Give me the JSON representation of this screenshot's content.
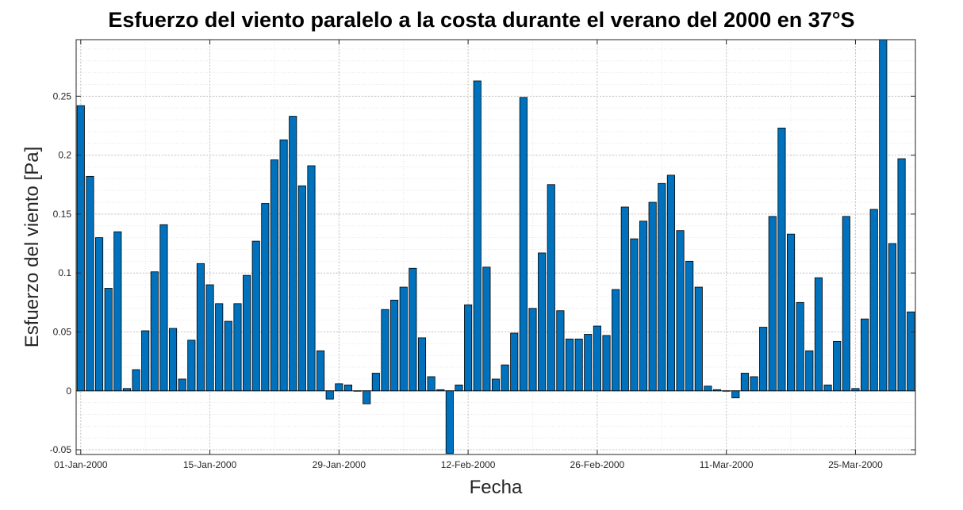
{
  "chart_data": {
    "type": "bar",
    "title": "Esfuerzo del viento paralelo a la costa durante el verano del 2000 en 37°S",
    "xlabel": "Fecha",
    "ylabel": "Esfuerzo del viento [Pa]",
    "ylim": [
      -0.054,
      0.298
    ],
    "yticks": [
      -0.05,
      0,
      0.05,
      0.1,
      0.15,
      0.2,
      0.25
    ],
    "ytick_labels": [
      "-0.05",
      "0",
      "0.05",
      "0.1",
      "0.15",
      "0.2",
      "0.25"
    ],
    "xlim": [
      "2000-01-01",
      "2000-03-31"
    ],
    "xticks": [
      "2000-01-01",
      "2000-01-15",
      "2000-01-29",
      "2000-02-12",
      "2000-02-26",
      "2000-03-11",
      "2000-03-25"
    ],
    "xtick_labels": [
      "01-Jan-2000",
      "15-Jan-2000",
      "29-Jan-2000",
      "12-Feb-2000",
      "26-Feb-2000",
      "11-Mar-2000",
      "25-Mar-2000"
    ],
    "grid": true,
    "minor_grid": true,
    "bar_color": "#0072BD",
    "x": [
      "2000-01-01",
      "2000-01-02",
      "2000-01-03",
      "2000-01-04",
      "2000-01-05",
      "2000-01-06",
      "2000-01-07",
      "2000-01-08",
      "2000-01-09",
      "2000-01-10",
      "2000-01-11",
      "2000-01-12",
      "2000-01-13",
      "2000-01-14",
      "2000-01-15",
      "2000-01-16",
      "2000-01-17",
      "2000-01-18",
      "2000-01-19",
      "2000-01-20",
      "2000-01-21",
      "2000-01-22",
      "2000-01-23",
      "2000-01-24",
      "2000-01-25",
      "2000-01-26",
      "2000-01-27",
      "2000-01-28",
      "2000-01-29",
      "2000-01-30",
      "2000-01-31",
      "2000-02-01",
      "2000-02-02",
      "2000-02-03",
      "2000-02-04",
      "2000-02-05",
      "2000-02-06",
      "2000-02-07",
      "2000-02-08",
      "2000-02-09",
      "2000-02-10",
      "2000-02-11",
      "2000-02-12",
      "2000-02-13",
      "2000-02-14",
      "2000-02-15",
      "2000-02-16",
      "2000-02-17",
      "2000-02-18",
      "2000-02-19",
      "2000-02-20",
      "2000-02-21",
      "2000-02-22",
      "2000-02-23",
      "2000-02-24",
      "2000-02-25",
      "2000-02-26",
      "2000-02-27",
      "2000-02-28",
      "2000-02-29",
      "2000-03-01",
      "2000-03-02",
      "2000-03-03",
      "2000-03-04",
      "2000-03-05",
      "2000-03-06",
      "2000-03-07",
      "2000-03-08",
      "2000-03-09",
      "2000-03-10",
      "2000-03-11",
      "2000-03-12",
      "2000-03-13",
      "2000-03-14",
      "2000-03-15",
      "2000-03-16",
      "2000-03-17",
      "2000-03-18",
      "2000-03-19",
      "2000-03-20",
      "2000-03-21",
      "2000-03-22",
      "2000-03-23",
      "2000-03-24",
      "2000-03-25",
      "2000-03-26",
      "2000-03-27",
      "2000-03-28",
      "2000-03-29",
      "2000-03-30",
      "2000-03-31"
    ],
    "values": [
      0.242,
      0.182,
      0.13,
      0.087,
      0.135,
      0.002,
      0.018,
      0.051,
      0.101,
      0.141,
      0.053,
      0.01,
      0.043,
      0.108,
      0.09,
      0.074,
      0.059,
      0.074,
      0.098,
      0.127,
      0.159,
      0.196,
      0.213,
      0.233,
      0.174,
      0.191,
      0.034,
      -0.007,
      0.006,
      0.005,
      0.0,
      -0.011,
      0.015,
      0.069,
      0.077,
      0.088,
      0.104,
      0.045,
      0.012,
      0.001,
      -0.053,
      0.005,
      0.073,
      0.263,
      0.105,
      0.01,
      0.022,
      0.049,
      0.249,
      0.07,
      0.117,
      0.175,
      0.068,
      0.044,
      0.044,
      0.048,
      0.055,
      0.047,
      0.086,
      0.156,
      0.129,
      0.144,
      0.16,
      0.176,
      0.183,
      0.136,
      0.11,
      0.088,
      0.004,
      0.001,
      0.0,
      -0.006,
      0.015,
      0.012,
      0.054,
      0.148,
      0.223,
      0.133,
      0.075,
      0.034,
      0.096,
      0.005,
      0.042,
      0.148,
      0.002,
      0.061,
      0.154,
      0.3,
      0.125,
      0.197,
      0.067
    ]
  }
}
